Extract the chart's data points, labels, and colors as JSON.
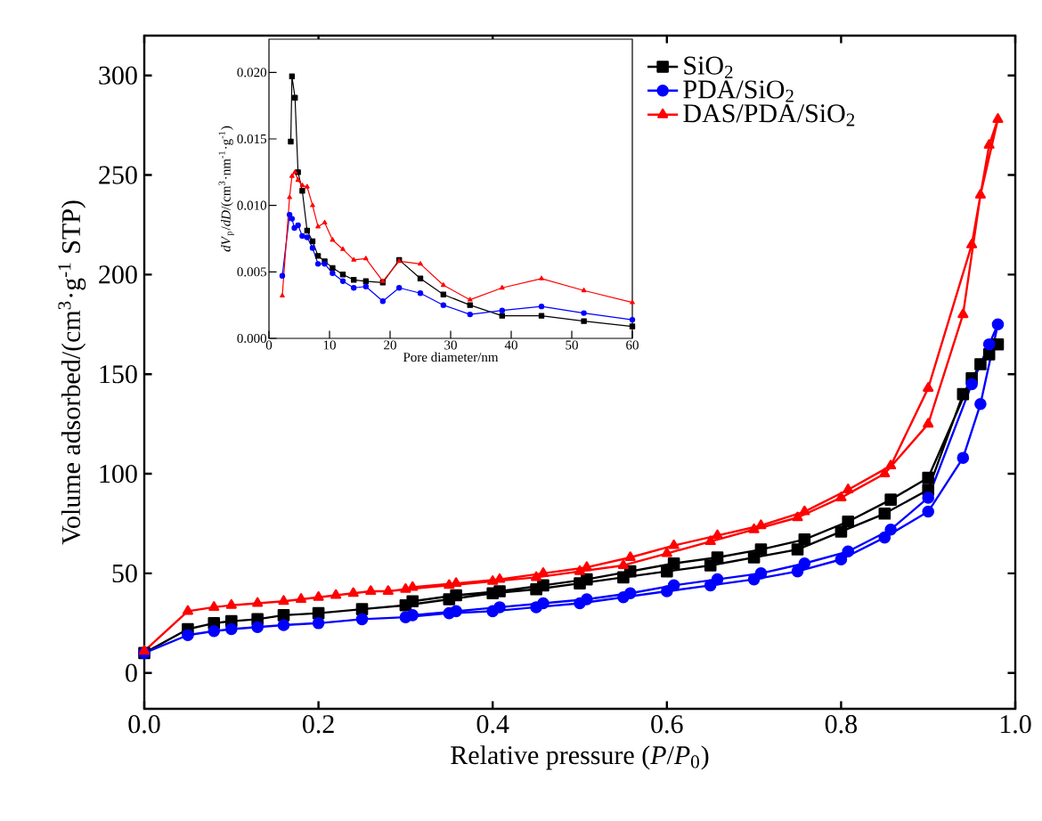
{
  "chart_data": [
    {
      "type": "line",
      "xlabel": "Relative pressure (*P*/*P*$_{0}$)",
      "ylabel": "Volume adsorbed/(cm$^{3}$·g$^{-1}$ STP)",
      "xlim": [
        0,
        1
      ],
      "ylim": [
        -18,
        320
      ],
      "xticks": [
        {
          "value": 0,
          "label": "0.0"
        },
        {
          "value": 0.2,
          "label": "0.2"
        },
        {
          "value": 0.4,
          "label": "0.4"
        },
        {
          "value": 0.6,
          "label": "0.6"
        },
        {
          "value": 0.8,
          "label": "0.8"
        },
        {
          "value": 1,
          "label": "1.0"
        }
      ],
      "yticks": [
        0,
        50,
        100,
        150,
        200,
        250,
        300
      ],
      "legend": "top right",
      "grid": false,
      "line_style": "solid",
      "series": [
        {
          "name": "SiO$_{2}$",
          "color": "#000000",
          "marker": "square",
          "x": [
            0,
            0.05,
            0.08,
            0.1,
            0.13,
            0.16,
            0.2,
            0.25,
            0.3,
            0.35,
            0.4,
            0.45,
            0.5,
            0.55,
            0.6,
            0.65,
            0.7,
            0.75,
            0.8,
            0.85,
            0.9,
            0.94,
            0.96,
            0.98,
            0.97,
            0.95,
            0.9,
            0.857,
            0.808,
            0.758,
            0.708,
            0.658,
            0.608,
            0.558,
            0.508,
            0.458,
            0.408,
            0.358,
            0.308
          ],
          "values": [
            10,
            22,
            25,
            26,
            27,
            29,
            30,
            32,
            34,
            37,
            40,
            42,
            45,
            48,
            51,
            54,
            58,
            62,
            71,
            80,
            92,
            140,
            155,
            165,
            160,
            148,
            98,
            87,
            76,
            67,
            62,
            58,
            55,
            51,
            47,
            44,
            41,
            39,
            36
          ]
        },
        {
          "name": "PDA/SiO$_{2}$",
          "color": "#0000ff",
          "marker": "circle",
          "x": [
            0,
            0.05,
            0.08,
            0.1,
            0.13,
            0.16,
            0.2,
            0.25,
            0.3,
            0.35,
            0.4,
            0.45,
            0.5,
            0.55,
            0.6,
            0.65,
            0.7,
            0.75,
            0.8,
            0.85,
            0.9,
            0.94,
            0.96,
            0.98,
            0.97,
            0.95,
            0.9,
            0.857,
            0.808,
            0.758,
            0.708,
            0.658,
            0.608,
            0.558,
            0.508,
            0.458,
            0.408,
            0.358,
            0.308
          ],
          "values": [
            10,
            19,
            21,
            22,
            23,
            24,
            25,
            27,
            28,
            30,
            31,
            33,
            35,
            38,
            41,
            44,
            47,
            51,
            57,
            68,
            81,
            108,
            135,
            175,
            165,
            145,
            88,
            72,
            61,
            55,
            50,
            47,
            44,
            40,
            37,
            35,
            33,
            31,
            29
          ]
        },
        {
          "name": "DAS/PDA/SiO$_{2}$",
          "color": "#ff0000",
          "marker": "triangle",
          "x": [
            0,
            0.05,
            0.08,
            0.1,
            0.13,
            0.16,
            0.18,
            0.2,
            0.22,
            0.24,
            0.26,
            0.28,
            0.3,
            0.35,
            0.4,
            0.45,
            0.5,
            0.55,
            0.6,
            0.65,
            0.7,
            0.75,
            0.8,
            0.85,
            0.9,
            0.94,
            0.96,
            0.98,
            0.97,
            0.95,
            0.9,
            0.857,
            0.808,
            0.758,
            0.708,
            0.658,
            0.608,
            0.558,
            0.508,
            0.458,
            0.408,
            0.358,
            0.308
          ],
          "values": [
            11,
            31,
            33,
            34,
            35,
            36,
            37,
            38,
            39,
            40,
            41,
            41,
            42,
            44,
            46,
            48,
            51,
            54,
            60,
            66,
            72,
            78,
            88,
            100,
            125,
            180,
            240,
            278,
            265,
            215,
            143,
            104,
            92,
            81,
            74,
            69,
            64,
            58,
            53,
            50,
            47,
            45,
            43
          ]
        }
      ]
    },
    {
      "type": "line",
      "xlabel": "Pore diameter/nm",
      "ylabel": "*dV*$_{p}$/*dD*/(cm$^{3}$·nm$^{-1}$·g$^{-1}$)",
      "xlim": [
        0,
        60
      ],
      "ylim": [
        0,
        0.0225
      ],
      "xticks": [
        0,
        10,
        20,
        30,
        40,
        50,
        60
      ],
      "yticks": [
        {
          "value": 0,
          "label": "0.000"
        },
        {
          "value": 0.005,
          "label": "0.005"
        },
        {
          "value": 0.01,
          "label": "0.010"
        },
        {
          "value": 0.015,
          "label": "0.015"
        },
        {
          "value": 0.02,
          "label": "0.020"
        }
      ],
      "legend": false,
      "grid": false,
      "line_style": "solid",
      "series": [
        {
          "color": "#000000",
          "marker": "square",
          "x": [
            3.6,
            3.8,
            4.3,
            4.8,
            5.5,
            6.3,
            7.2,
            8.1,
            9.2,
            10.5,
            12.2,
            14,
            16,
            18.8,
            21.5,
            25,
            28.8,
            33.2,
            38.5,
            45,
            52,
            60
          ],
          "values": [
            0.0148,
            0.0197,
            0.0181,
            0.0125,
            0.0111,
            0.0081,
            0.0073,
            0.0062,
            0.0058,
            0.0053,
            0.0048,
            0.0044,
            0.0043,
            0.0042,
            0.0059,
            0.0045,
            0.0033,
            0.0025,
            0.0017,
            0.0017,
            0.0013,
            0.0009
          ]
        },
        {
          "color": "#0000ff",
          "marker": "circle",
          "x": [
            2.2,
            3.4,
            3.8,
            4.2,
            4.8,
            5.5,
            6.3,
            7.2,
            8.1,
            9.2,
            10.5,
            12.2,
            14,
            16,
            18.8,
            21.5,
            25,
            28.8,
            33.2,
            38.5,
            45,
            52,
            60
          ],
          "values": [
            0.0047,
            0.0093,
            0.009,
            0.0083,
            0.0085,
            0.0077,
            0.0076,
            0.0068,
            0.0056,
            0.0056,
            0.0049,
            0.0043,
            0.0038,
            0.0039,
            0.0028,
            0.0038,
            0.0034,
            0.0025,
            0.0018,
            0.0021,
            0.0024,
            0.0019,
            0.0014
          ]
        },
        {
          "color": "#ff0000",
          "marker": "triangle",
          "x": [
            2.2,
            3.4,
            3.8,
            4.3,
            4.8,
            5.5,
            6.3,
            7.2,
            8.1,
            9.2,
            10.5,
            12.2,
            14,
            16,
            18.8,
            21.5,
            25,
            28.8,
            33.2,
            38.5,
            45,
            52,
            60
          ],
          "values": [
            0.0032,
            0.0106,
            0.0122,
            0.0125,
            0.0119,
            0.0115,
            0.0114,
            0.01,
            0.0084,
            0.0087,
            0.0074,
            0.0067,
            0.0059,
            0.006,
            0.0043,
            0.0058,
            0.0056,
            0.004,
            0.0029,
            0.0038,
            0.0045,
            0.0036,
            0.0027
          ]
        }
      ]
    }
  ]
}
